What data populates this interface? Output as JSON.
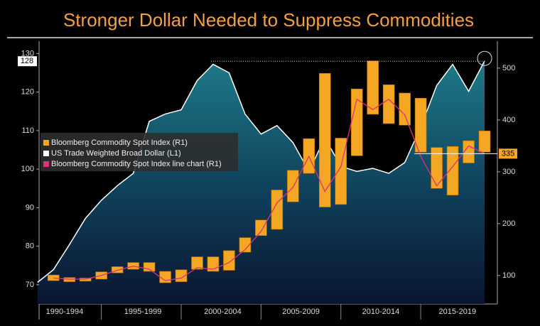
{
  "chart_data": {
    "type": "combo",
    "title": "Stronger Dollar Needed to Suppress Commodities",
    "x": [
      1991,
      1992,
      1993,
      1994,
      1995,
      1996,
      1997,
      1998,
      1999,
      2000,
      2001,
      2002,
      2003,
      2004,
      2005,
      2006,
      2007,
      2008,
      2009,
      2010,
      2011,
      2012,
      2013,
      2014,
      2015,
      2016,
      2017,
      2018,
      2019
    ],
    "xlim": [
      1991.1,
      2019.8
    ],
    "xticks": [
      {
        "value": 1992.7,
        "label": "1990-1994"
      },
      {
        "value": 1997.6,
        "label": "1995-1999"
      },
      {
        "value": 2002.6,
        "label": "2000-2004"
      },
      {
        "value": 2007.5,
        "label": "2005-2009"
      },
      {
        "value": 2012.5,
        "label": "2010-2014"
      },
      {
        "value": 2017.3,
        "label": "2015-2019"
      }
    ],
    "x_separators": [
      1995,
      2000,
      2005,
      2010,
      2015
    ],
    "ylim": [
      65,
      133.2
    ],
    "yticks": [
      70,
      80,
      90,
      100,
      110,
      120,
      130
    ],
    "y2lim": [
      45,
      552
    ],
    "y2ticks": [
      100,
      200,
      300,
      400,
      500
    ],
    "series": [
      {
        "name": "US Trade Weighted Broad Dollar (L1)",
        "type": "area",
        "axis": "y",
        "color": "#ffffff",
        "values": [
          70.6,
          73.9,
          80.4,
          87.2,
          91.9,
          95.7,
          98.9,
          112.4,
          114.3,
          115.4,
          123.0,
          127.2,
          125.0,
          114.3,
          109.1,
          111.3,
          106.9,
          99.4,
          108.1,
          100.7,
          99.4,
          100.2,
          98.9,
          101.7,
          110.9,
          121.7,
          127.2,
          120.2,
          128.1
        ]
      },
      {
        "name": "Bloomberg Commodity Spot Index (R1)",
        "type": "bar",
        "axis": "y2",
        "color": "#f5a623",
        "low": [
          null,
          90,
          88,
          89,
          93,
          105,
          112,
          108,
          86,
          88,
          112,
          108,
          110,
          145,
          177,
          189,
          242,
          297,
          232,
          237,
          331,
          411,
          393,
          390,
          338,
          268,
          255,
          317,
          338
        ],
        "high": [
          null,
          101,
          96,
          95,
          107,
          117,
          125,
          125,
          108,
          111,
          136,
          136,
          148,
          173,
          207,
          265,
          303,
          364,
          490,
          365,
          460,
          514,
          468,
          452,
          442,
          347,
          349,
          360,
          379
        ]
      },
      {
        "name": "Bloomberg Commodity Spot Index line chart (R1)",
        "type": "line",
        "axis": "y2",
        "color": "#e0307a",
        "values": [
          null,
          95,
          93,
          93,
          100,
          110,
          118,
          112,
          90,
          95,
          115,
          112,
          125,
          150,
          185,
          240,
          270,
          330,
          262,
          310,
          440,
          420,
          440,
          410,
          330,
          273,
          310,
          350,
          335
        ]
      }
    ],
    "legend_order": [
      1,
      0,
      2
    ],
    "annotations": [
      {
        "value": 128,
        "axis": "y"
      },
      {
        "value": 335,
        "axis": "y2"
      }
    ]
  }
}
